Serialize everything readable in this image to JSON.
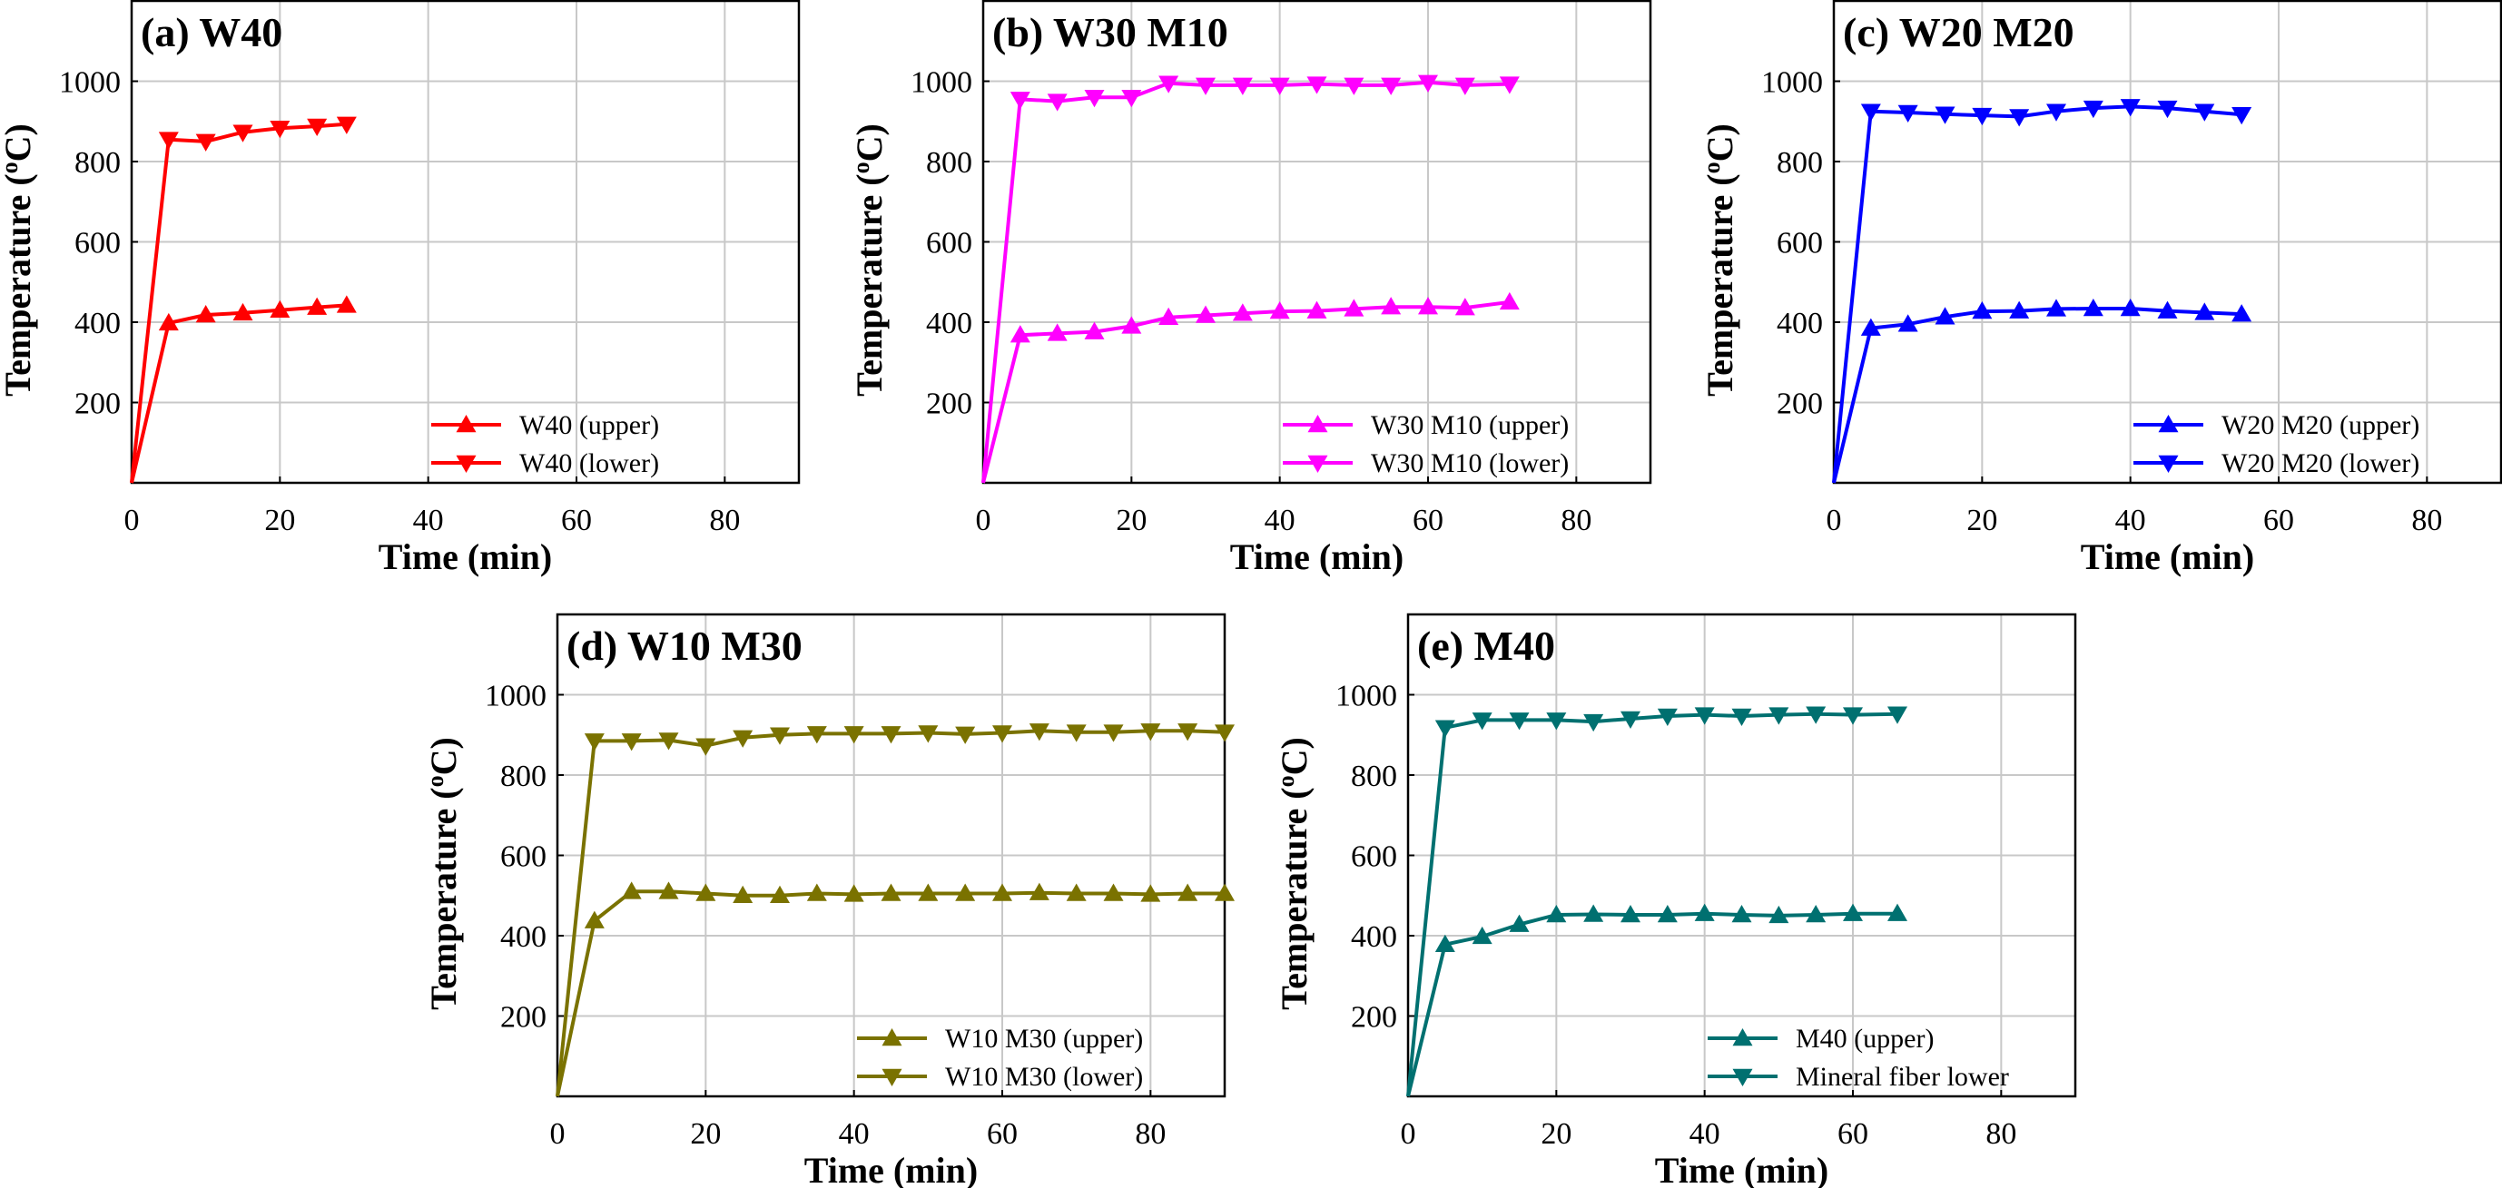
{
  "chart_data": [
    {
      "type": "line",
      "panel": "a",
      "title": "(a) W40",
      "xlabel": "Time (min)",
      "ylabel": "Temperature (oC)",
      "ylabel_main": "Temperature (",
      "ylabel_sup": "o",
      "ylabel_end": "C)",
      "xlim": [
        0,
        90
      ],
      "ylim": [
        0,
        1200
      ],
      "xticks": [
        0,
        20,
        40,
        60,
        80
      ],
      "yticks": [
        200,
        400,
        600,
        800,
        1000
      ],
      "grid": true,
      "legend_position": "bottom-right",
      "color": "#ff0000",
      "series": [
        {
          "name": "W40 (upper)",
          "marker": "triangle-up",
          "x": [
            0,
            5,
            10,
            15,
            20,
            25,
            29
          ],
          "y": [
            0,
            398,
            418,
            423,
            430,
            437,
            442
          ]
        },
        {
          "name": "W40 (lower)",
          "marker": "triangle-down",
          "x": [
            0,
            5,
            10,
            15,
            20,
            25,
            29
          ],
          "y": [
            0,
            855,
            850,
            873,
            883,
            888,
            893
          ]
        }
      ]
    },
    {
      "type": "line",
      "panel": "b",
      "title": "(b) W30 M10",
      "xlabel": "Time (min)",
      "ylabel": "Temperature (oC)",
      "ylabel_main": "Temperature (",
      "ylabel_sup": "o",
      "ylabel_end": "C)",
      "xlim": [
        0,
        90
      ],
      "ylim": [
        0,
        1200
      ],
      "xticks": [
        0,
        20,
        40,
        60,
        80
      ],
      "yticks": [
        200,
        400,
        600,
        800,
        1000
      ],
      "grid": true,
      "legend_position": "bottom-right",
      "color": "#ff00ff",
      "series": [
        {
          "name": "W30 M10 (upper)",
          "marker": "triangle-up",
          "x": [
            0,
            5,
            10,
            15,
            20,
            25,
            30,
            35,
            40,
            45,
            50,
            55,
            60,
            65,
            71
          ],
          "y": [
            0,
            368,
            372,
            376,
            390,
            412,
            417,
            422,
            427,
            428,
            433,
            438,
            438,
            436,
            450
          ]
        },
        {
          "name": "W30 M10 (lower)",
          "marker": "triangle-down",
          "x": [
            0,
            5,
            10,
            15,
            20,
            25,
            30,
            35,
            40,
            45,
            50,
            55,
            60,
            65,
            71
          ],
          "y": [
            0,
            955,
            950,
            960,
            960,
            995,
            990,
            990,
            990,
            993,
            990,
            990,
            997,
            990,
            993
          ]
        }
      ]
    },
    {
      "type": "line",
      "panel": "c",
      "title": "(c) W20 M20",
      "xlabel": "Time (min)",
      "ylabel": "Temperature (oC)",
      "ylabel_main": "Temperature (",
      "ylabel_sup": "o",
      "ylabel_end": "C)",
      "xlim": [
        0,
        90
      ],
      "ylim": [
        0,
        1200
      ],
      "xticks": [
        0,
        20,
        40,
        60,
        80
      ],
      "yticks": [
        200,
        400,
        600,
        800,
        1000
      ],
      "grid": true,
      "legend_position": "bottom-right",
      "color": "#0000ff",
      "series": [
        {
          "name": "W20 M20 (upper)",
          "marker": "triangle-up",
          "x": [
            0,
            5,
            10,
            15,
            20,
            25,
            30,
            35,
            40,
            45,
            50,
            55
          ],
          "y": [
            0,
            385,
            395,
            413,
            427,
            428,
            433,
            434,
            434,
            428,
            424,
            420
          ]
        },
        {
          "name": "W20 M20 (lower)",
          "marker": "triangle-down",
          "x": [
            0,
            5,
            10,
            15,
            20,
            25,
            30,
            35,
            40,
            45,
            50,
            55
          ],
          "y": [
            0,
            925,
            922,
            918,
            915,
            912,
            925,
            933,
            937,
            933,
            925,
            917
          ]
        }
      ]
    },
    {
      "type": "line",
      "panel": "d",
      "title": "(d) W10 M30",
      "xlabel": "Time (min)",
      "ylabel": "Temperature (oC)",
      "ylabel_main": "Temperature (",
      "ylabel_sup": "o",
      "ylabel_end": "C)",
      "xlim": [
        0,
        90
      ],
      "ylim": [
        0,
        1200
      ],
      "xticks": [
        0,
        20,
        40,
        60,
        80
      ],
      "yticks": [
        200,
        400,
        600,
        800,
        1000
      ],
      "grid": true,
      "legend_position": "bottom-right",
      "color": "#7a7200",
      "series": [
        {
          "name": "W10 M30 (upper)",
          "marker": "triangle-up",
          "x": [
            0,
            5,
            10,
            15,
            20,
            25,
            30,
            35,
            40,
            45,
            50,
            55,
            60,
            65,
            70,
            75,
            80,
            85,
            90
          ],
          "y": [
            0,
            437,
            510,
            510,
            505,
            500,
            500,
            505,
            503,
            505,
            505,
            505,
            505,
            507,
            505,
            505,
            503,
            505,
            505
          ]
        },
        {
          "name": "W10 M30 (lower)",
          "marker": "triangle-down",
          "x": [
            0,
            5,
            10,
            15,
            20,
            25,
            30,
            35,
            40,
            45,
            50,
            55,
            60,
            65,
            70,
            75,
            80,
            85,
            90
          ],
          "y": [
            0,
            885,
            885,
            887,
            873,
            893,
            900,
            903,
            903,
            903,
            905,
            902,
            905,
            910,
            907,
            907,
            910,
            910,
            907
          ]
        }
      ]
    },
    {
      "type": "line",
      "panel": "e",
      "title": "(e) M40",
      "xlabel": "Time (min)",
      "ylabel": "Temperature (oC)",
      "ylabel_main": "Temperature (",
      "ylabel_sup": "o",
      "ylabel_end": "C)",
      "xlim": [
        0,
        90
      ],
      "ylim": [
        0,
        1200
      ],
      "xticks": [
        0,
        20,
        40,
        60,
        80
      ],
      "yticks": [
        200,
        400,
        600,
        800,
        1000
      ],
      "grid": true,
      "legend_position": "bottom-right",
      "color": "#007070",
      "series": [
        {
          "name": "M40 (upper)",
          "marker": "triangle-up",
          "x": [
            0,
            5,
            10,
            15,
            20,
            25,
            30,
            35,
            40,
            45,
            50,
            55,
            60,
            66
          ],
          "y": [
            0,
            378,
            398,
            428,
            452,
            453,
            452,
            452,
            455,
            452,
            450,
            452,
            455,
            455
          ]
        },
        {
          "name": "Mineral fiber lower",
          "marker": "triangle-down",
          "x": [
            0,
            5,
            10,
            15,
            20,
            25,
            30,
            35,
            40,
            45,
            50,
            55,
            60,
            66
          ],
          "y": [
            0,
            918,
            937,
            937,
            937,
            933,
            940,
            947,
            950,
            947,
            950,
            952,
            950,
            952
          ]
        }
      ]
    }
  ]
}
